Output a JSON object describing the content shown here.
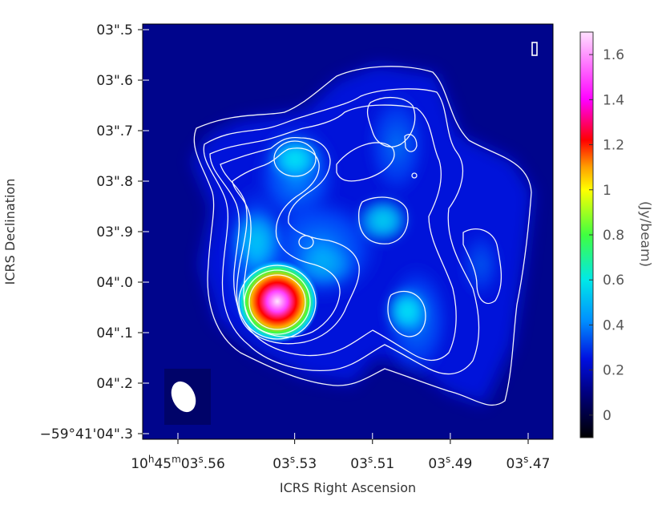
{
  "chart_data": {
    "type": "heatmap",
    "xlabel": "ICRS Right Ascension",
    "ylabel": "ICRS Declination",
    "x_ticks": [
      {
        "value": 3.56,
        "pre": "10",
        "h": "h",
        "mid": "45",
        "m": "m",
        "sec": "03",
        "s": "s",
        "tail": ".56"
      },
      {
        "value": 3.53,
        "pre": "",
        "h": "",
        "mid": "",
        "m": "",
        "sec": "03",
        "s": "s",
        "tail": ".53"
      },
      {
        "value": 3.51,
        "pre": "",
        "h": "",
        "mid": "",
        "m": "",
        "sec": "03",
        "s": "s",
        "tail": ".51"
      },
      {
        "value": 3.49,
        "pre": "",
        "h": "",
        "mid": "",
        "m": "",
        "sec": "03",
        "s": "s",
        "tail": ".49"
      },
      {
        "value": 3.47,
        "pre": "",
        "h": "",
        "mid": "",
        "m": "",
        "sec": "03",
        "s": "s",
        "tail": ".47"
      }
    ],
    "y_ticks": [
      {
        "value": 3.5,
        "text": "03\".5"
      },
      {
        "value": 3.6,
        "text": "03\".6"
      },
      {
        "value": 3.7,
        "text": "03\".7"
      },
      {
        "value": 3.8,
        "text": "03\".8"
      },
      {
        "value": 3.9,
        "text": "03\".9"
      },
      {
        "value": 4.0,
        "text": "04\".0"
      },
      {
        "value": 4.1,
        "text": "04\".1"
      },
      {
        "value": 4.2,
        "text": "04\".2"
      },
      {
        "value": 4.3,
        "text": "−59°41'04\".3"
      }
    ],
    "colorbar": {
      "label": "(Jy/beam)",
      "range": [
        -0.1,
        1.7
      ],
      "ticks": [
        {
          "value": 0,
          "text": "0"
        },
        {
          "value": 0.2,
          "text": "0.2"
        },
        {
          "value": 0.4,
          "text": "0.4"
        },
        {
          "value": 0.6,
          "text": "0.6"
        },
        {
          "value": 0.8,
          "text": "0.8"
        },
        {
          "value": 1.0,
          "text": "1"
        },
        {
          "value": 1.2,
          "text": "1.2"
        },
        {
          "value": 1.4,
          "text": "1.4"
        },
        {
          "value": 1.6,
          "text": "1.6"
        }
      ],
      "stops": [
        {
          "value": -0.1,
          "color": "#000000"
        },
        {
          "value": 0.1,
          "color": "#000080"
        },
        {
          "value": 0.25,
          "color": "#0010e0"
        },
        {
          "value": 0.42,
          "color": "#0090ff"
        },
        {
          "value": 0.6,
          "color": "#00e8e8"
        },
        {
          "value": 0.8,
          "color": "#40ff40"
        },
        {
          "value": 1.0,
          "color": "#ffff00"
        },
        {
          "value": 1.1,
          "color": "#ffa000"
        },
        {
          "value": 1.22,
          "color": "#ff0000"
        },
        {
          "value": 1.4,
          "color": "#ff00ff"
        },
        {
          "value": 1.7,
          "color": "#ffe0ff"
        }
      ]
    },
    "peak": {
      "ra_s": 3.532,
      "dec_arcsec": 4.04,
      "value": 1.65
    },
    "contour_color": "#ffffff",
    "beam_color": "#ffffff",
    "background_value": 0.12
  }
}
